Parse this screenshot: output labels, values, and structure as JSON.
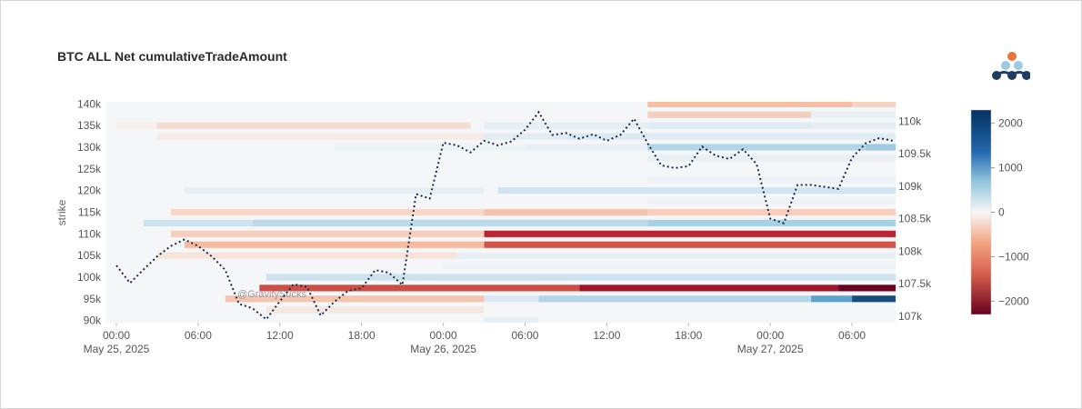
{
  "title": "BTC ALL Net cumulativeTradeAmount",
  "watermark": "@GravitySucks",
  "colors": {
    "neg_max": "#67001f",
    "neg_mid": "#d6604d",
    "neutral": "#f7f7f7",
    "pos_mid": "#92c5de",
    "pos_max": "#053061",
    "price_line": "#1a2b4c",
    "logo_orange": "#e8743b",
    "logo_light": "#9ec9e2",
    "logo_dark": "#1f3c63"
  },
  "chart_data": {
    "type": "heatmap",
    "title": "BTC ALL Net cumulativeTradeAmount",
    "xlabel": "",
    "ylabel": "strike",
    "x_ticks": [
      {
        "hour": 0,
        "label": "00:00",
        "sublabel": "May 25, 2025"
      },
      {
        "hour": 6,
        "label": "06:00",
        "sublabel": ""
      },
      {
        "hour": 12,
        "label": "12:00",
        "sublabel": ""
      },
      {
        "hour": 18,
        "label": "18:00",
        "sublabel": ""
      },
      {
        "hour": 24,
        "label": "00:00",
        "sublabel": "May 26, 2025"
      },
      {
        "hour": 30,
        "label": "06:00",
        "sublabel": ""
      },
      {
        "hour": 36,
        "label": "12:00",
        "sublabel": ""
      },
      {
        "hour": 42,
        "label": "18:00",
        "sublabel": ""
      },
      {
        "hour": 48,
        "label": "00:00",
        "sublabel": "May 27, 2025"
      },
      {
        "hour": 54,
        "label": "06:00",
        "sublabel": ""
      }
    ],
    "xlim_hours": [
      -0.8,
      57.2
    ],
    "y_left": {
      "ticks": [
        90000,
        95000,
        100000,
        105000,
        110000,
        115000,
        120000,
        125000,
        130000,
        135000,
        140000
      ],
      "labels": [
        "90k",
        "95k",
        "100k",
        "105k",
        "110k",
        "115k",
        "120k",
        "125k",
        "130k",
        "135k",
        "140k"
      ],
      "ylim": [
        89500,
        140500
      ]
    },
    "y_right": {
      "ticks": [
        107000,
        107500,
        108000,
        108500,
        109000,
        109500,
        110000
      ],
      "labels": [
        "107k",
        "107.5k",
        "108k",
        "108.5k",
        "109k",
        "109.5k",
        "110k"
      ],
      "ylim": [
        106900,
        110300
      ]
    },
    "colorbar": {
      "ticks": [
        2000,
        1000,
        0,
        -1000,
        -2000
      ],
      "labels": [
        "2000",
        "1000",
        "0",
        "−1000",
        "−2000"
      ],
      "range": [
        -2300,
        2300
      ]
    },
    "heatmap_bands": [
      {
        "strike": 140000,
        "x0": 39,
        "x1": 54,
        "value": -280
      },
      {
        "strike": 140000,
        "x0": 54,
        "x1": 57.2,
        "value": -180
      },
      {
        "strike": 137500,
        "x0": 39,
        "x1": 51,
        "value": -200
      },
      {
        "strike": 137500,
        "x0": 51,
        "x1": 57.2,
        "value": 150
      },
      {
        "strike": 135000,
        "x0": 0,
        "x1": 3,
        "value": -40
      },
      {
        "strike": 135000,
        "x0": 3,
        "x1": 26,
        "value": -130
      },
      {
        "strike": 135000,
        "x0": 27,
        "x1": 39,
        "value": 180
      },
      {
        "strike": 135000,
        "x0": 39,
        "x1": 51,
        "value": 260
      },
      {
        "strike": 135000,
        "x0": 51,
        "x1": 57.2,
        "value": 200
      },
      {
        "strike": 132500,
        "x0": 3,
        "x1": 27,
        "value": -60
      },
      {
        "strike": 132500,
        "x0": 27,
        "x1": 33,
        "value": 220
      },
      {
        "strike": 132500,
        "x0": 33,
        "x1": 39,
        "value": 300
      },
      {
        "strike": 132500,
        "x0": 39,
        "x1": 57.2,
        "value": 250
      },
      {
        "strike": 130000,
        "x0": 16,
        "x1": 30,
        "value": 100
      },
      {
        "strike": 130000,
        "x0": 30,
        "x1": 39,
        "value": 180
      },
      {
        "strike": 130000,
        "x0": 39,
        "x1": 55,
        "value": 700
      },
      {
        "strike": 130000,
        "x0": 55,
        "x1": 57.2,
        "value": 900
      },
      {
        "strike": 127500,
        "x0": 39,
        "x1": 57.2,
        "value": 150
      },
      {
        "strike": 122500,
        "x0": 39,
        "x1": 57.2,
        "value": 120
      },
      {
        "strike": 120000,
        "x0": 5,
        "x1": 27,
        "value": 180
      },
      {
        "strike": 120000,
        "x0": 28,
        "x1": 57.2,
        "value": 400
      },
      {
        "strike": 117500,
        "x0": 39,
        "x1": 57.2,
        "value": 80
      },
      {
        "strike": 115000,
        "x0": 4,
        "x1": 27,
        "value": -150
      },
      {
        "strike": 115000,
        "x0": 27,
        "x1": 39,
        "value": -250
      },
      {
        "strike": 115000,
        "x0": 39,
        "x1": 57.2,
        "value": -200
      },
      {
        "strike": 112500,
        "x0": 2,
        "x1": 10,
        "value": 450
      },
      {
        "strike": 112500,
        "x0": 10,
        "x1": 39,
        "value": 600
      },
      {
        "strike": 112500,
        "x0": 39,
        "x1": 57.2,
        "value": 800
      },
      {
        "strike": 110000,
        "x0": 4,
        "x1": 27,
        "value": -200
      },
      {
        "strike": 110000,
        "x0": 27,
        "x1": 57.2,
        "value": -1500
      },
      {
        "strike": 107500,
        "x0": 5,
        "x1": 27,
        "value": -300
      },
      {
        "strike": 107500,
        "x0": 27,
        "x1": 57.2,
        "value": -1100
      },
      {
        "strike": 105000,
        "x0": 3,
        "x1": 25,
        "value": -100
      },
      {
        "strike": 105000,
        "x0": 25,
        "x1": 57.2,
        "value": 150
      },
      {
        "strike": 102500,
        "x0": 24,
        "x1": 57.2,
        "value": 120
      },
      {
        "strike": 100000,
        "x0": 11,
        "x1": 57.2,
        "value": 450
      },
      {
        "strike": 97500,
        "x0": 10.5,
        "x1": 34,
        "value": -1150
      },
      {
        "strike": 97500,
        "x0": 34,
        "x1": 53,
        "value": -1750
      },
      {
        "strike": 97500,
        "x0": 53,
        "x1": 57.2,
        "value": -2250
      },
      {
        "strike": 95000,
        "x0": 8,
        "x1": 27,
        "value": -250
      },
      {
        "strike": 95000,
        "x0": 27,
        "x1": 31,
        "value": 300
      },
      {
        "strike": 95000,
        "x0": 31,
        "x1": 51,
        "value": 700
      },
      {
        "strike": 95000,
        "x0": 51,
        "x1": 54,
        "value": 1400
      },
      {
        "strike": 95000,
        "x0": 54,
        "x1": 57.2,
        "value": 2100
      },
      {
        "strike": 92500,
        "x0": 11,
        "x1": 27,
        "value": -80
      },
      {
        "strike": 90000,
        "x0": 27,
        "x1": 31,
        "value": 180
      }
    ],
    "series": [
      {
        "name": "",
        "axis": "right",
        "style": "dotted",
        "x": [
          0,
          1,
          2,
          3,
          4,
          5,
          6,
          7,
          8,
          9,
          10,
          11,
          12,
          13,
          14,
          15,
          16,
          17,
          18,
          19,
          20,
          21,
          22,
          23,
          24,
          25,
          26,
          27,
          28,
          29,
          30,
          31,
          32,
          33,
          34,
          35,
          36,
          37,
          38,
          39,
          40,
          41,
          42,
          43,
          44,
          45,
          46,
          47,
          48,
          49,
          50,
          51,
          52,
          53,
          54,
          55,
          56,
          57
        ],
        "y": [
          107780,
          107510,
          107720,
          107920,
          108080,
          108180,
          108080,
          107920,
          107710,
          107190,
          107120,
          106950,
          107230,
          107490,
          107450,
          107010,
          107220,
          107390,
          107430,
          107710,
          107670,
          107480,
          108880,
          108810,
          109670,
          109630,
          109520,
          109700,
          109630,
          109690,
          109870,
          110140,
          109790,
          109820,
          109730,
          109800,
          109700,
          109790,
          110040,
          109660,
          109320,
          109280,
          109310,
          109610,
          109470,
          109420,
          109570,
          109340,
          108500,
          108430,
          109020,
          109020,
          108990,
          108960,
          109440,
          109660,
          109740,
          109700
        ]
      }
    ]
  }
}
